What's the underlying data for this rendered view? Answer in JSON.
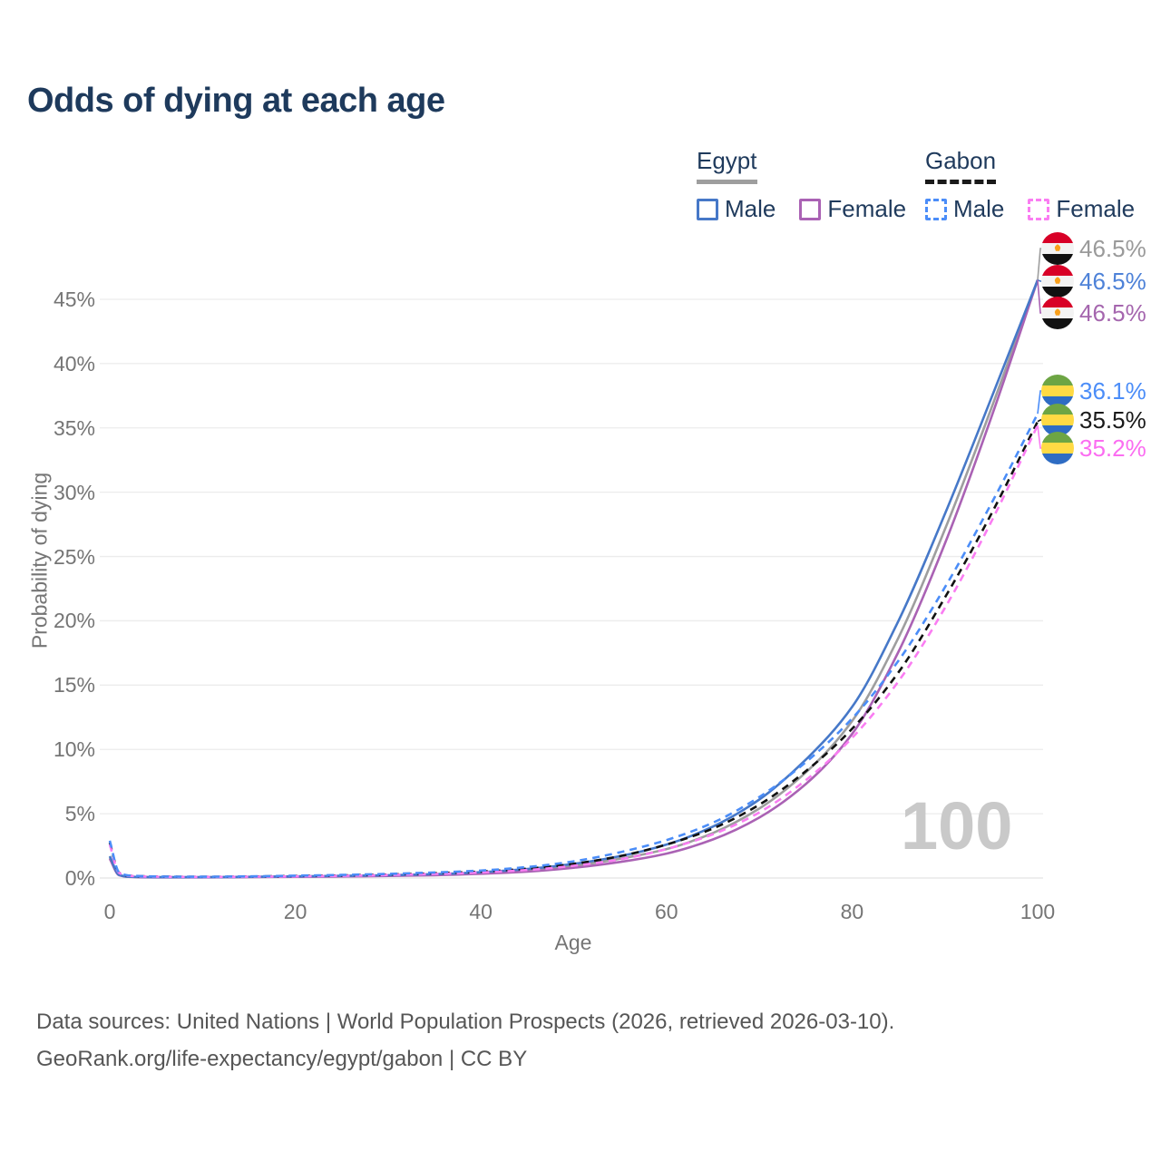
{
  "title": "Odds of dying at each age",
  "legend": {
    "egypt": {
      "label": "Egypt",
      "male": "Male",
      "female": "Female"
    },
    "gabon": {
      "label": "Gabon",
      "male": "Male",
      "female": "Female"
    }
  },
  "axes": {
    "y_title": "Probability of dying",
    "x_title": "Age"
  },
  "watermark": "100",
  "end_labels": {
    "egypt": [
      {
        "value": "46.5%",
        "color": "#9a9a9a",
        "series": "egypt-total",
        "flag": "egypt-flag-icon"
      },
      {
        "value": "46.5%",
        "color": "#4e82d8",
        "series": "egypt-male",
        "flag": "egypt-flag-icon"
      },
      {
        "value": "46.5%",
        "color": "#a566ae",
        "series": "egypt-female",
        "flag": "egypt-flag-icon"
      }
    ],
    "gabon": [
      {
        "value": "36.1%",
        "color": "#4b8df8",
        "series": "gabon-male",
        "flag": "gabon-flag-icon"
      },
      {
        "value": "35.5%",
        "color": "#1a1a1a",
        "series": "gabon-total",
        "flag": "gabon-flag-icon"
      },
      {
        "value": "35.2%",
        "color": "#fb6df1",
        "series": "gabon-female",
        "flag": "gabon-flag-icon"
      }
    ]
  },
  "footer": {
    "line1": "Data sources: United Nations | World Population Prospects (2026, retrieved 2026-03-10).",
    "line2": "GeoRank.org/life-expectancy/egypt/gabon | CC BY"
  },
  "chart_data": {
    "type": "line",
    "title": "Odds of dying at each age",
    "xlabel": "Age",
    "ylabel": "Probability of dying",
    "xlim": [
      0,
      100
    ],
    "ylim": [
      0,
      48
    ],
    "x_ticks": [
      0,
      20,
      40,
      60,
      80,
      100
    ],
    "y_ticks": [
      0,
      5,
      10,
      15,
      20,
      25,
      30,
      35,
      40,
      45
    ],
    "grid": "horizontal",
    "legend_position": "top-right",
    "x": [
      0,
      1,
      2,
      5,
      10,
      15,
      20,
      25,
      30,
      35,
      40,
      45,
      50,
      55,
      60,
      65,
      70,
      75,
      80,
      85,
      90,
      95,
      100
    ],
    "series": [
      {
        "name": "egypt-total",
        "country": "Egypt",
        "sex": "Both",
        "color": "#9e9e9e",
        "dash": false,
        "values": [
          1.6,
          0.24,
          0.1,
          0.055,
          0.055,
          0.08,
          0.11,
          0.14,
          0.19,
          0.26,
          0.39,
          0.6,
          0.95,
          1.5,
          2.25,
          3.5,
          5.4,
          8.2,
          12.2,
          18.7,
          27.1,
          36.5,
          46.5
        ]
      },
      {
        "name": "egypt-female",
        "country": "Egypt",
        "sex": "Female",
        "color": "#aa62b4",
        "dash": false,
        "values": [
          1.5,
          0.22,
          0.09,
          0.05,
          0.05,
          0.07,
          0.09,
          0.12,
          0.16,
          0.22,
          0.33,
          0.5,
          0.8,
          1.25,
          1.9,
          3.0,
          4.7,
          7.3,
          11.2,
          17.6,
          26.0,
          35.8,
          46.5
        ]
      },
      {
        "name": "egypt-male",
        "country": "Egypt",
        "sex": "Male",
        "color": "#4678c8",
        "dash": false,
        "values": [
          1.7,
          0.25,
          0.1,
          0.06,
          0.06,
          0.09,
          0.13,
          0.17,
          0.22,
          0.3,
          0.45,
          0.7,
          1.1,
          1.7,
          2.6,
          4.0,
          6.1,
          9.2,
          13.3,
          20.0,
          28.3,
          37.3,
          46.5
        ]
      },
      {
        "name": "gabon-total",
        "country": "Gabon",
        "sex": "Both",
        "color": "#111111",
        "dash": true,
        "values": [
          2.75,
          0.42,
          0.18,
          0.11,
          0.09,
          0.115,
          0.155,
          0.2,
          0.27,
          0.37,
          0.5,
          0.73,
          1.1,
          1.7,
          2.6,
          3.85,
          5.7,
          8.3,
          11.6,
          16.0,
          21.8,
          28.3,
          35.5
        ]
      },
      {
        "name": "gabon-female",
        "country": "Gabon",
        "sex": "Female",
        "color": "#fa7df2",
        "dash": true,
        "values": [
          2.6,
          0.4,
          0.17,
          0.1,
          0.085,
          0.1,
          0.13,
          0.17,
          0.23,
          0.31,
          0.43,
          0.62,
          0.95,
          1.45,
          2.25,
          3.4,
          5.1,
          7.6,
          10.9,
          15.3,
          21.0,
          27.7,
          35.2
        ]
      },
      {
        "name": "gabon-male",
        "country": "Gabon",
        "sex": "Male",
        "color": "#4b8df8",
        "dash": true,
        "values": [
          2.9,
          0.45,
          0.2,
          0.12,
          0.1,
          0.13,
          0.18,
          0.24,
          0.32,
          0.43,
          0.58,
          0.85,
          1.3,
          2.0,
          2.95,
          4.3,
          6.3,
          9.0,
          12.4,
          16.9,
          22.6,
          29.1,
          36.1
        ]
      }
    ],
    "end_values": {
      "egypt-total": 46.5,
      "egypt-male": 46.5,
      "egypt-female": 46.5,
      "gabon-male": 36.1,
      "gabon-total": 35.5,
      "gabon-female": 35.2
    }
  }
}
